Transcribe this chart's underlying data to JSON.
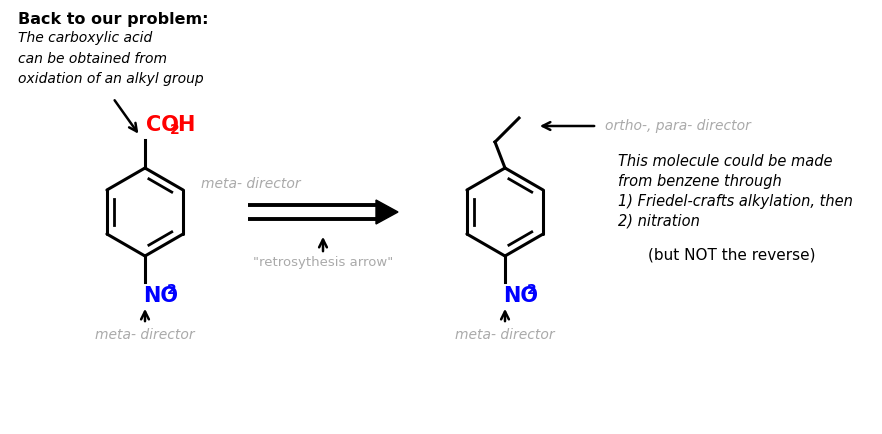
{
  "title": "Back to our problem:",
  "italic_text": "The carboxylic acid\ncan be obtained from\noxidation of an alkyl group",
  "meta_director_top_left": "meta- director",
  "meta_director_bottom_left": "meta- director",
  "meta_director_bottom_right": "meta- director",
  "ortho_para_label": "ortho-, para- director",
  "retrosynthesis_label": "\"retrosythesis arrow\"",
  "right_text_line1": "This molecule could be made",
  "right_text_line2": "from benzene through",
  "right_text_line3": "1) Friedel-crafts alkylation, then",
  "right_text_line4": "2) nitration",
  "but_not_text": "(but NOT the reverse)",
  "co2h_color": "#ff0000",
  "no2_color": "#0000ff",
  "black": "#000000",
  "gray": "#aaaaaa",
  "bg_color": "#ffffff",
  "fig_width": 8.82,
  "fig_height": 4.34,
  "dpi": 100
}
